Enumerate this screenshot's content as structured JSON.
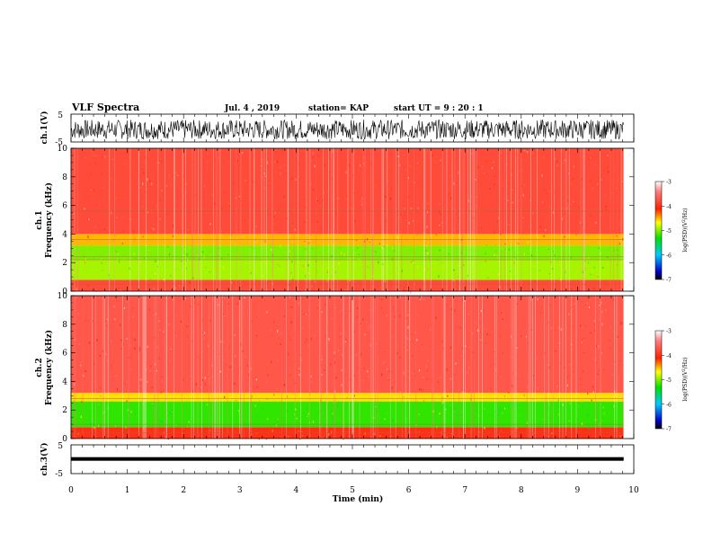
{
  "header": {
    "title": "VLF Spectra",
    "date": "Jul. 4 , 2019",
    "station": "station= KAP",
    "start": "start UT =  9 : 20 : 1"
  },
  "chart_data": [
    {
      "type": "line",
      "panel": "ch1-waveform",
      "ylabel": "ch.1(V)",
      "ylim": [
        -5,
        5
      ],
      "ytick_labels": [
        "-5",
        "5"
      ],
      "xlim": [
        0,
        10
      ],
      "x_range_data": [
        0,
        9.82
      ],
      "description_values": "dense noisy waveform, amplitude approx -4 to 3 V",
      "amplitude": [
        -4,
        3
      ]
    },
    {
      "type": "heatmap",
      "panel": "ch1-spectrogram",
      "ylabel": "ch.1\nFrequency (kHz)",
      "ylabel_lines": [
        "ch.1",
        "Frequency (kHz)"
      ],
      "ylim": [
        0,
        10
      ],
      "ytick_labels": [
        "0",
        "2",
        "4",
        "6",
        "8",
        "10"
      ],
      "xlim": [
        0,
        10
      ],
      "x_range_data": [
        0,
        9.82
      ],
      "bands": [
        {
          "from_khz": 0,
          "to_khz": 0.8,
          "log_psd": -3.8
        },
        {
          "from_khz": 0.8,
          "to_khz": 2.2,
          "log_psd": -4.9
        },
        {
          "from_khz": 2.2,
          "to_khz": 3.2,
          "log_psd": -5.0
        },
        {
          "from_khz": 3.2,
          "to_khz": 4.0,
          "log_psd": -4.5
        },
        {
          "from_khz": 4.0,
          "to_khz": 10.0,
          "log_psd": -3.8
        }
      ],
      "lines_khz": [
        0.5,
        2.2,
        2.4,
        3.6,
        5.6
      ],
      "colorbar": {
        "label": "log(PSD)(V²/Hz)",
        "label_main": "log(PSD)(V",
        "label_sup": "2",
        "label_end": "/Hz)",
        "range": [
          -7,
          -3
        ],
        "tick_labels": [
          "-3",
          "-4",
          "-5",
          "-6",
          "-7"
        ]
      }
    },
    {
      "type": "heatmap",
      "panel": "ch2-spectrogram",
      "ylabel": "ch.2\nFrequency (kHz)",
      "ylabel_lines": [
        "ch.2",
        "Frequency (kHz)"
      ],
      "ylim": [
        0,
        10
      ],
      "ytick_labels": [
        "0",
        "2",
        "4",
        "6",
        "8",
        "10"
      ],
      "xlim": [
        0,
        10
      ],
      "x_range_data": [
        0,
        9.82
      ],
      "bands": [
        {
          "from_khz": 0,
          "to_khz": 0.8,
          "log_psd": -4.0
        },
        {
          "from_khz": 0.8,
          "to_khz": 2.6,
          "log_psd": -5.2
        },
        {
          "from_khz": 2.6,
          "to_khz": 3.2,
          "log_psd": -4.6
        },
        {
          "from_khz": 3.2,
          "to_khz": 10.0,
          "log_psd": -3.7
        }
      ],
      "lines_khz": [
        0.4,
        1.0,
        2.8
      ],
      "colorbar": {
        "label": "log(PSD)(V²/Hz)",
        "label_main": "log(PSD)(V",
        "label_sup": "2",
        "label_end": "/Hz)",
        "range": [
          -7,
          -3
        ],
        "tick_labels": [
          "-3",
          "-4",
          "-5",
          "-6",
          "-7"
        ]
      }
    },
    {
      "type": "line",
      "panel": "ch3-waveform",
      "ylabel": "ch.3(V)",
      "ylim": [
        -5,
        5
      ],
      "ytick_labels": [
        "-5",
        "5"
      ],
      "xlim": [
        0,
        10
      ],
      "x_range_data": [
        0,
        9.82
      ],
      "constant_value": 0.1
    },
    {
      "type": "axis",
      "panel": "time-axis",
      "xlabel": "Time (min)",
      "xlim": [
        0,
        10
      ],
      "xtick_labels": [
        "0",
        "1",
        "2",
        "3",
        "4",
        "5",
        "6",
        "7",
        "8",
        "9",
        "10"
      ]
    }
  ]
}
